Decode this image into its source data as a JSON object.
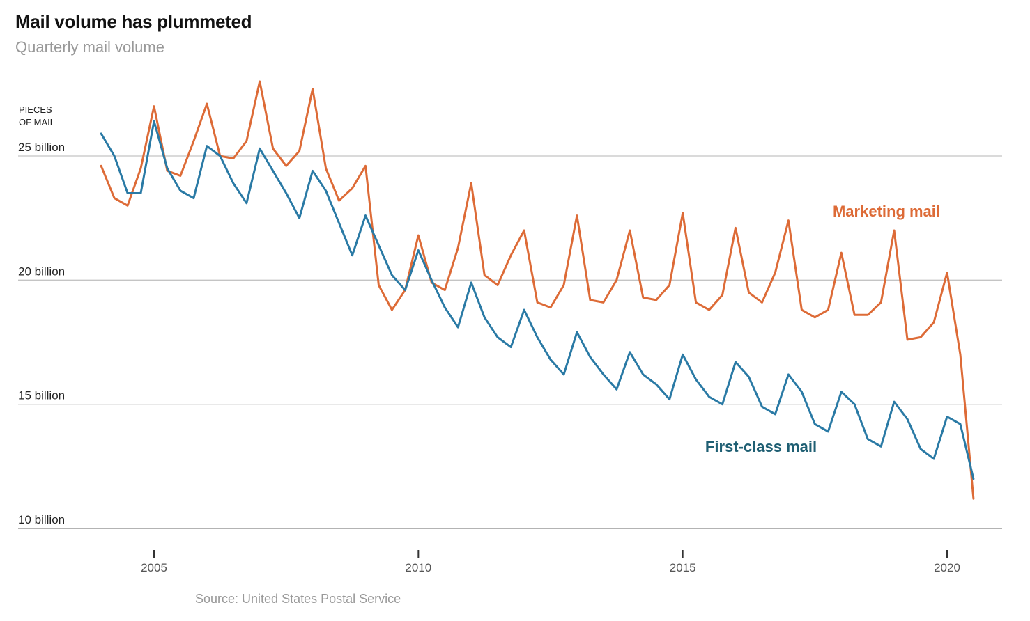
{
  "header": {
    "title": "Mail volume has plummeted",
    "subtitle": "Quarterly mail volume"
  },
  "footer": {
    "source": "Source: United States Postal Service"
  },
  "colors": {
    "marketing": "#dd6b37",
    "first_class": "#2a7aa5",
    "first_class_label": "#1f5f73"
  },
  "chart_data": {
    "type": "line",
    "title": "Mail volume has plummeted",
    "subtitle": "Quarterly mail volume",
    "ylabel": "PIECES OF MAIL",
    "ylabel_lines": [
      "PIECES",
      "OF MAIL"
    ],
    "ylim": [
      10,
      28
    ],
    "y_unit": "billion pieces",
    "y_ticks": [
      {
        "value": 10,
        "label": "10 billion"
      },
      {
        "value": 15,
        "label": "15 billion"
      },
      {
        "value": 20,
        "label": "20 billion"
      },
      {
        "value": 25,
        "label": "25 billion"
      }
    ],
    "xlim": [
      2003.75,
      2021.0
    ],
    "x_ticks": [
      {
        "value": 2005,
        "label": "2005"
      },
      {
        "value": 2010,
        "label": "2010"
      },
      {
        "value": 2015,
        "label": "2015"
      },
      {
        "value": 2020,
        "label": "2020"
      }
    ],
    "x_start": 2004.0,
    "x_step": 0.25,
    "grid": true,
    "legend": "direct labels",
    "series": [
      {
        "name": "Marketing mail",
        "color": "#dd6b37",
        "values": [
          24.6,
          23.3,
          23.0,
          24.5,
          27.0,
          24.4,
          24.2,
          25.6,
          27.1,
          25.0,
          24.9,
          25.6,
          28.0,
          25.3,
          24.6,
          25.2,
          27.7,
          24.5,
          23.2,
          23.7,
          24.6,
          19.8,
          18.8,
          19.6,
          21.8,
          19.9,
          19.6,
          21.3,
          23.9,
          20.2,
          19.8,
          21.0,
          22.0,
          19.1,
          18.9,
          19.8,
          22.6,
          19.2,
          19.1,
          20.0,
          22.0,
          19.3,
          19.2,
          19.8,
          22.7,
          19.1,
          18.8,
          19.4,
          22.1,
          19.5,
          19.1,
          20.3,
          22.4,
          18.8,
          18.5,
          18.8,
          21.1,
          18.6,
          18.6,
          19.1,
          22.0,
          17.6,
          17.7,
          18.3,
          20.3,
          17.0,
          11.2
        ]
      },
      {
        "name": "First-class mail",
        "color": "#2a7aa5",
        "values": [
          25.9,
          25.0,
          23.5,
          23.5,
          26.4,
          24.5,
          23.6,
          23.3,
          25.4,
          25.0,
          23.9,
          23.1,
          25.3,
          24.4,
          23.5,
          22.5,
          24.4,
          23.6,
          22.3,
          21.0,
          22.6,
          21.4,
          20.2,
          19.6,
          21.2,
          20.0,
          18.9,
          18.1,
          19.9,
          18.5,
          17.7,
          17.3,
          18.8,
          17.7,
          16.8,
          16.2,
          17.9,
          16.9,
          16.2,
          15.6,
          17.1,
          16.2,
          15.8,
          15.2,
          17.0,
          16.0,
          15.3,
          15.0,
          16.7,
          16.1,
          14.9,
          14.6,
          16.2,
          15.5,
          14.2,
          13.9,
          15.5,
          15.0,
          13.6,
          13.3,
          15.1,
          14.4,
          13.2,
          12.8,
          14.5,
          14.2,
          12.0
        ]
      }
    ],
    "annotations": [
      {
        "text": "Marketing mail",
        "series": "Marketing mail"
      },
      {
        "text": "First-class mail",
        "series": "First-class mail"
      }
    ]
  }
}
